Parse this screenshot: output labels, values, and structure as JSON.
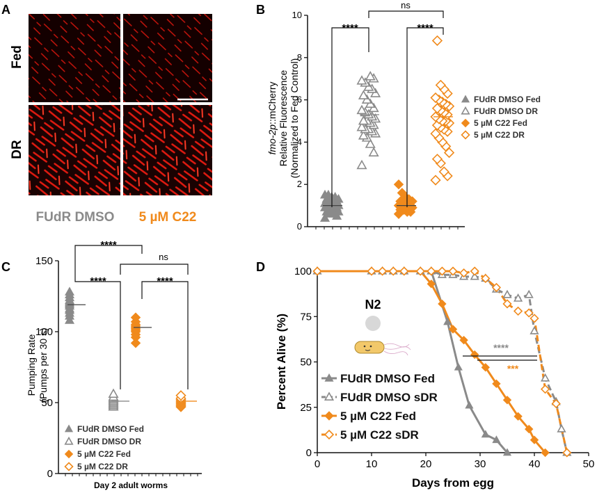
{
  "panels": {
    "a": {
      "letter": "A",
      "row_labels": [
        "Fed",
        "DR"
      ],
      "col_labels": [
        "FUdR DMSO",
        "5 µM C22"
      ],
      "col_colors": [
        "#8a8a8a",
        "#f08a1c"
      ]
    },
    "b": {
      "letter": "B",
      "ylabel_italic": "fmo-2p",
      "ylabel_line1_rest": "::mCherry",
      "ylabel_line2": "Relative Fluorescence",
      "ylabel_line3": "(Normalized to Fed Control)",
      "yticks": [
        "0",
        "2",
        "4",
        "6",
        "8",
        "10"
      ],
      "sig": [
        "****",
        "****",
        "ns"
      ],
      "legend": [
        "FUdR DMSO Fed",
        "FUdR DMSO DR",
        "5 µM C22 Fed",
        "5 µM C22 DR"
      ]
    },
    "c": {
      "letter": "C",
      "ylabel_line1": "Pumping  Rate",
      "ylabel_line2": "(Pumps per 30 s)",
      "yticks": [
        "0",
        "50",
        "100",
        "150"
      ],
      "xlabel": "Day 2 adult worms",
      "sig": [
        "****",
        "****",
        "****",
        "ns"
      ],
      "legend": [
        "FUdR DMSO Fed",
        "FUdR DMSO DR",
        "5 µM C22 Fed",
        "5 µM C22 DR"
      ]
    },
    "d": {
      "letter": "D",
      "ylabel": "Percent  Alive (%)",
      "xlabel": "Days from egg",
      "xticks": [
        "0",
        "10",
        "20",
        "30",
        "40",
        "50"
      ],
      "yticks": [
        "0",
        "25",
        "50",
        "75",
        "100"
      ],
      "strain": "N2",
      "sig": [
        "****",
        "***"
      ],
      "legend": [
        "FUdR DMSO Fed",
        "FUdR DMSO sDR",
        "5 µM C22 Fed",
        "5 µM C22 sDR"
      ]
    }
  },
  "colors": {
    "grey": "#8a8a8a",
    "orange": "#f08a1c",
    "red": "#ff2a1a",
    "black": "#111111"
  },
  "chart_data": [
    {
      "type": "scatter",
      "ylim": [
        0,
        10
      ],
      "ylabel": "fmo-2p::mCherry Relative Fluorescence (Normalized to Fed Control)",
      "series": [
        {
          "name": "FUdR DMSO Fed",
          "marker": "triangle-filled",
          "mean": 1.0,
          "values": [
            0.4,
            0.5,
            0.6,
            0.6,
            0.7,
            0.7,
            0.8,
            0.8,
            0.8,
            0.9,
            0.9,
            0.9,
            1.0,
            1.0,
            1.0,
            1.0,
            1.1,
            1.1,
            1.1,
            1.2,
            1.2,
            1.2,
            1.3,
            1.3,
            1.4,
            1.4,
            1.5,
            1.5
          ]
        },
        {
          "name": "FUdR DMSO DR",
          "marker": "triangle-open",
          "mean": 5.3,
          "values": [
            2.9,
            3.5,
            3.9,
            4.2,
            4.3,
            4.4,
            4.5,
            4.6,
            4.6,
            4.7,
            4.8,
            4.9,
            5.0,
            5.0,
            5.1,
            5.2,
            5.3,
            5.4,
            5.5,
            5.6,
            5.8,
            6.0,
            6.2,
            6.3,
            6.5,
            6.6,
            6.8,
            6.9,
            7.0,
            7.1
          ]
        },
        {
          "name": "5 µM C22 Fed",
          "marker": "diamond-filled",
          "mean": 1.0,
          "values": [
            0.6,
            0.7,
            0.7,
            0.8,
            0.8,
            0.9,
            0.9,
            0.9,
            1.0,
            1.0,
            1.0,
            1.1,
            1.1,
            1.2,
            1.2,
            1.3,
            1.4,
            1.6,
            2.0
          ]
        },
        {
          "name": "5 µM C22 DR",
          "marker": "diamond-open",
          "mean": 5.2,
          "values": [
            2.2,
            2.4,
            2.6,
            3.0,
            3.2,
            3.5,
            3.8,
            4.0,
            4.2,
            4.4,
            4.5,
            4.6,
            4.7,
            4.8,
            4.9,
            5.0,
            5.0,
            5.1,
            5.2,
            5.3,
            5.4,
            5.5,
            5.6,
            5.7,
            5.8,
            5.9,
            6.0,
            6.1,
            6.3,
            6.5,
            6.7,
            8.8
          ]
        }
      ]
    },
    {
      "type": "scatter",
      "ylim": [
        0,
        150
      ],
      "ylabel": "Pumping Rate (Pumps per 30 s)",
      "xlabel": "Day 2 adult worms",
      "series": [
        {
          "name": "FUdR DMSO Fed",
          "marker": "triangle-filled",
          "mean": 119,
          "values": [
            108,
            111,
            113,
            115,
            116,
            118,
            119,
            120,
            121,
            122,
            124,
            126,
            128
          ]
        },
        {
          "name": "FUdR DMSO DR",
          "marker": "triangle-open",
          "mean": 51,
          "values": [
            47,
            48,
            49,
            50,
            51,
            52,
            53,
            54,
            56
          ]
        },
        {
          "name": "5 µM C22 Fed",
          "marker": "diamond-filled",
          "mean": 103,
          "values": [
            92,
            96,
            98,
            100,
            101,
            102,
            103,
            104,
            105,
            107,
            110
          ]
        },
        {
          "name": "5 µM C22 DR",
          "marker": "diamond-open",
          "mean": 51,
          "values": [
            47,
            48,
            49,
            50,
            51,
            52,
            53,
            55
          ]
        }
      ]
    },
    {
      "type": "line",
      "xlim": [
        0,
        50
      ],
      "ylim": [
        0,
        100
      ],
      "xlabel": "Days from egg",
      "ylabel": "Percent Alive (%)",
      "series": [
        {
          "name": "FUdR DMSO Fed",
          "marker": "triangle-filled",
          "points": [
            [
              0,
              100
            ],
            [
              10,
              100
            ],
            [
              12,
              100
            ],
            [
              14,
              100
            ],
            [
              16,
              100
            ],
            [
              19,
              100
            ],
            [
              21,
              100
            ],
            [
              24,
              72
            ],
            [
              26,
              47
            ],
            [
              28,
              26
            ],
            [
              31,
              10
            ],
            [
              33,
              7
            ],
            [
              35,
              0
            ]
          ]
        },
        {
          "name": "FUdR DMSO sDR",
          "marker": "triangle-open",
          "points": [
            [
              0,
              100
            ],
            [
              10,
              100
            ],
            [
              12,
              100
            ],
            [
              14,
              100
            ],
            [
              16,
              100
            ],
            [
              19,
              100
            ],
            [
              21,
              100
            ],
            [
              23,
              98
            ],
            [
              25,
              98
            ],
            [
              27,
              97
            ],
            [
              29,
              97
            ],
            [
              31,
              96
            ],
            [
              33,
              90
            ],
            [
              35,
              87
            ],
            [
              37,
              85
            ],
            [
              39,
              87
            ],
            [
              40,
              67
            ],
            [
              42,
              41
            ],
            [
              44,
              28
            ],
            [
              45,
              13
            ],
            [
              46,
              0
            ]
          ]
        },
        {
          "name": "5 µM C22 Fed",
          "marker": "diamond-filled",
          "points": [
            [
              0,
              100
            ],
            [
              10,
              100
            ],
            [
              12,
              100
            ],
            [
              14,
              100
            ],
            [
              16,
              100
            ],
            [
              19,
              100
            ],
            [
              21,
              93
            ],
            [
              23,
              82
            ],
            [
              25,
              68
            ],
            [
              27,
              62
            ],
            [
              29,
              54
            ],
            [
              31,
              47
            ],
            [
              33,
              38
            ],
            [
              35,
              29
            ],
            [
              37,
              20
            ],
            [
              39,
              13
            ],
            [
              40,
              7
            ],
            [
              42,
              0
            ]
          ]
        },
        {
          "name": "5 µM C22 sDR",
          "marker": "diamond-open",
          "points": [
            [
              0,
              100
            ],
            [
              10,
              100
            ],
            [
              12,
              100
            ],
            [
              14,
              100
            ],
            [
              16,
              100
            ],
            [
              19,
              100
            ],
            [
              21,
              100
            ],
            [
              23,
              100
            ],
            [
              25,
              100
            ],
            [
              27,
              99
            ],
            [
              29,
              100
            ],
            [
              31,
              96
            ],
            [
              33,
              91
            ],
            [
              35,
              82
            ],
            [
              37,
              78
            ],
            [
              39,
              77
            ],
            [
              40,
              74
            ],
            [
              42,
              35
            ],
            [
              44,
              27
            ],
            [
              46,
              0
            ]
          ]
        }
      ]
    }
  ]
}
